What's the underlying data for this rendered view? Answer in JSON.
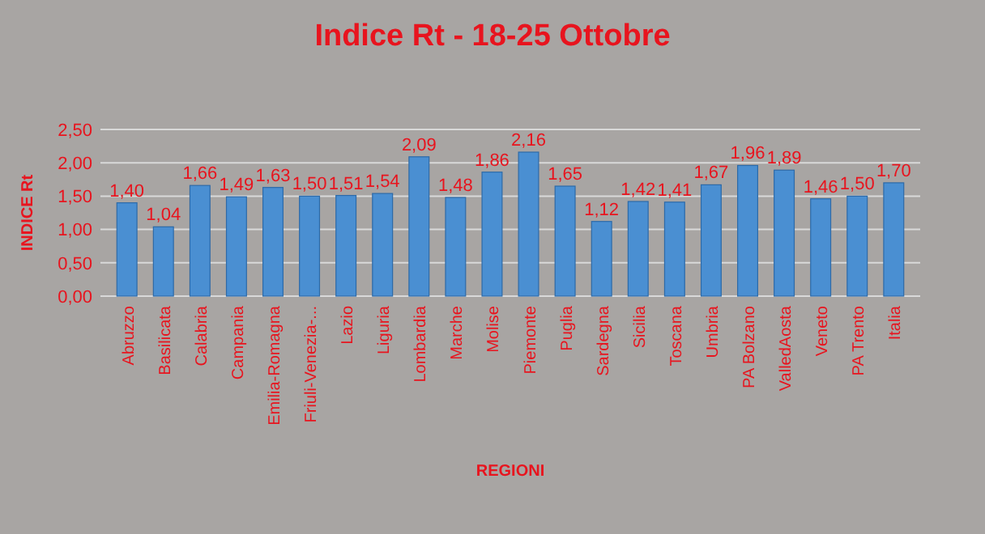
{
  "chart_data": {
    "type": "bar",
    "title": "Indice Rt - 18-25 Ottobre",
    "xlabel": "REGIONI",
    "ylabel": "INDICE Rt",
    "categories": [
      "Abruzzo",
      "Basilicata",
      "Calabria",
      "Campania",
      "Emilia-Romagna",
      "Friuli-Venezia-...",
      "Lazio",
      "Liguria",
      "Lombardia",
      "Marche",
      "Molise",
      "Piemonte",
      "Puglia",
      "Sardegna",
      "Sicilia",
      "Toscana",
      "Umbria",
      "PA Bolzano",
      "ValledAosta",
      "Veneto",
      "PA Trento",
      "Italia"
    ],
    "values": [
      1.4,
      1.04,
      1.66,
      1.49,
      1.63,
      1.5,
      1.51,
      1.54,
      2.09,
      1.48,
      1.86,
      2.16,
      1.65,
      1.12,
      1.42,
      1.41,
      1.67,
      1.96,
      1.89,
      1.46,
      1.5,
      1.7
    ],
    "value_labels": [
      "1,40",
      "1,04",
      "1,66",
      "1,49",
      "1,63",
      "1,50",
      "1,51",
      "1,54",
      "2,09",
      "1,48",
      "1,86",
      "2,16",
      "1,65",
      "1,12",
      "1,42",
      "1,41",
      "1,67",
      "1,96",
      "1,89",
      "1,46",
      "1,50",
      "1,70"
    ],
    "color": "#4a8fd2",
    "ylim": [
      0,
      2.5
    ],
    "yticks": [
      {
        "value": 0,
        "label": "0,00"
      },
      {
        "value": 0.5,
        "label": "0,50"
      },
      {
        "value": 1,
        "label": "1,00"
      },
      {
        "value": 1.5,
        "label": "1,50"
      },
      {
        "value": 2,
        "label": "2,00"
      },
      {
        "value": 2.5,
        "label": "2,50"
      }
    ],
    "grid": "y"
  }
}
